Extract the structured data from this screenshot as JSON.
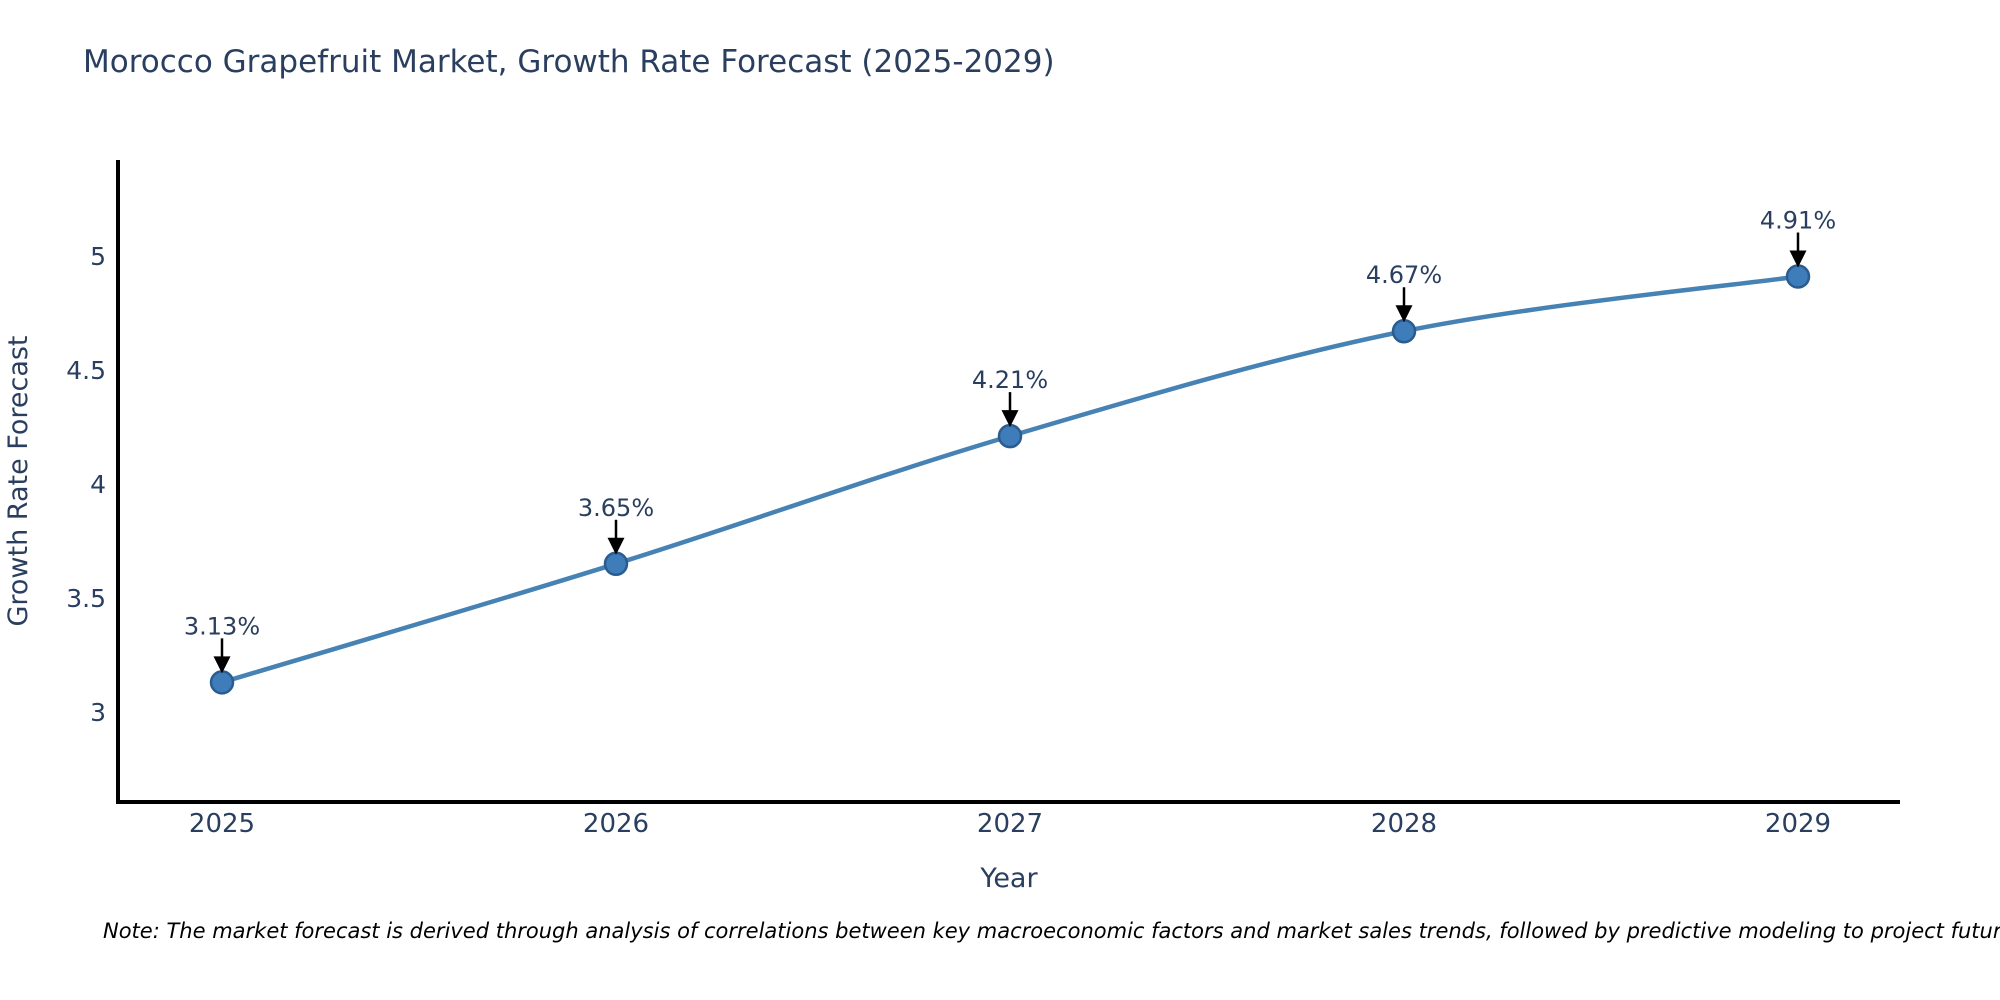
{
  "title": "Morocco Grapefruit Market, Growth Rate Forecast (2025-2029)",
  "note": "Note: The market forecast is derived through analysis of correlations between key macroeconomic factors and market sales trends, followed by predictive modeling to project future sales",
  "chart_data": {
    "type": "line",
    "x": [
      "2025",
      "2026",
      "2027",
      "2028",
      "2029"
    ],
    "values": [
      3.13,
      3.65,
      4.21,
      4.67,
      4.91
    ],
    "point_labels": [
      "3.13%",
      "3.65%",
      "4.21%",
      "4.67%",
      "4.91%"
    ],
    "title": "Morocco Grapefruit Market, Growth Rate Forecast (2025-2029)",
    "xlabel": "Year",
    "ylabel": "Growth Rate Forecast",
    "yticks": [
      "3",
      "3.5",
      "4",
      "4.5",
      "5"
    ],
    "ytick_values": [
      3,
      3.5,
      4,
      4.5,
      5
    ],
    "ylim": [
      2.6,
      5.45
    ],
    "grid": false,
    "legend_position": "none",
    "line_shape": "spline",
    "marker": "circle",
    "annotation_arrows": true,
    "colors": {
      "line": "#4682b4",
      "marker_fill": "#3e7cba",
      "marker_stroke": "#2b5c8f",
      "axis_line": "#000000",
      "tick_text": "#2a3f5f",
      "title_text": "#2a3f5f",
      "annotation_text": "#2a3f5f",
      "annotation_arrow": "#000000",
      "note_text": "#000000",
      "background": "#ffffff"
    }
  }
}
